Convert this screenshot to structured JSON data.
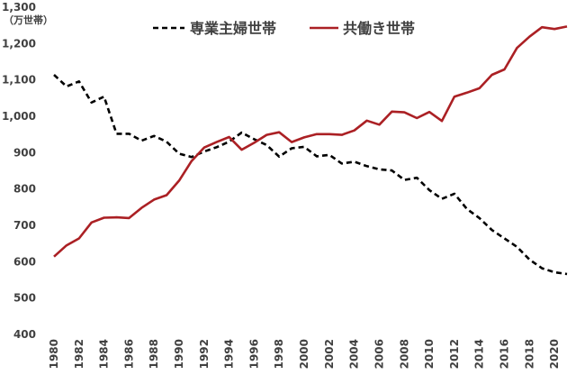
{
  "chart_data": {
    "type": "line",
    "title": "",
    "xlabel": "",
    "ylabel": "（万世帯）",
    "ylim": [
      400,
      1300
    ],
    "xlim": [
      1980,
      2021
    ],
    "grid": false,
    "legend": "top-center",
    "y_ticks": {
      "values": [
        400,
        500,
        600,
        700,
        800,
        900,
        1000,
        1100,
        1200,
        1300
      ],
      "labels": [
        "400",
        "500",
        "600",
        "700",
        "800",
        "900",
        "1,000",
        "1,100",
        "1,200",
        "1,300"
      ]
    },
    "x_ticks": {
      "values": [
        1980,
        1982,
        1984,
        1986,
        1988,
        1990,
        1992,
        1994,
        1996,
        1998,
        2000,
        2002,
        2004,
        2006,
        2008,
        2010,
        2012,
        2014,
        2016,
        2018,
        2020
      ],
      "labels": [
        "1980",
        "1982",
        "1984",
        "1986",
        "1988",
        "1990",
        "1992",
        "1994",
        "1996",
        "1998",
        "2000",
        "2002",
        "2004",
        "2006",
        "2008",
        "2010",
        "2012",
        "2014",
        "2016",
        "2018",
        "2020"
      ]
    },
    "x": [
      1980,
      1981,
      1982,
      1983,
      1984,
      1985,
      1986,
      1987,
      1988,
      1989,
      1990,
      1991,
      1992,
      1993,
      1994,
      1995,
      1996,
      1997,
      1998,
      1999,
      2000,
      2001,
      2002,
      2003,
      2004,
      2005,
      2006,
      2007,
      2008,
      2009,
      2010,
      2011,
      2012,
      2013,
      2014,
      2015,
      2016,
      2017,
      2018,
      2019,
      2020,
      2021
    ],
    "series": [
      {
        "name": "専業主婦世帯",
        "color": "#000000",
        "style": "dashed",
        "values": [
          1114,
          1082,
          1096,
          1038,
          1054,
          952,
          952,
          933,
          946,
          930,
          897,
          888,
          903,
          915,
          930,
          955,
          937,
          921,
          889,
          912,
          916,
          890,
          894,
          870,
          875,
          863,
          854,
          851,
          825,
          831,
          797,
          773,
          787,
          745,
          720,
          687,
          664,
          641,
          606,
          582,
          571,
          566
        ]
      },
      {
        "name": "共働き世帯",
        "color": "#ab2024",
        "style": "solid",
        "values": [
          614,
          645,
          664,
          708,
          721,
          722,
          720,
          748,
          771,
          783,
          823,
          877,
          914,
          929,
          943,
          908,
          927,
          949,
          956,
          929,
          942,
          951,
          951,
          949,
          961,
          988,
          977,
          1013,
          1011,
          995,
          1012,
          987,
          1054,
          1065,
          1077,
          1114,
          1129,
          1188,
          1219,
          1245,
          1240,
          1247
        ]
      }
    ]
  }
}
